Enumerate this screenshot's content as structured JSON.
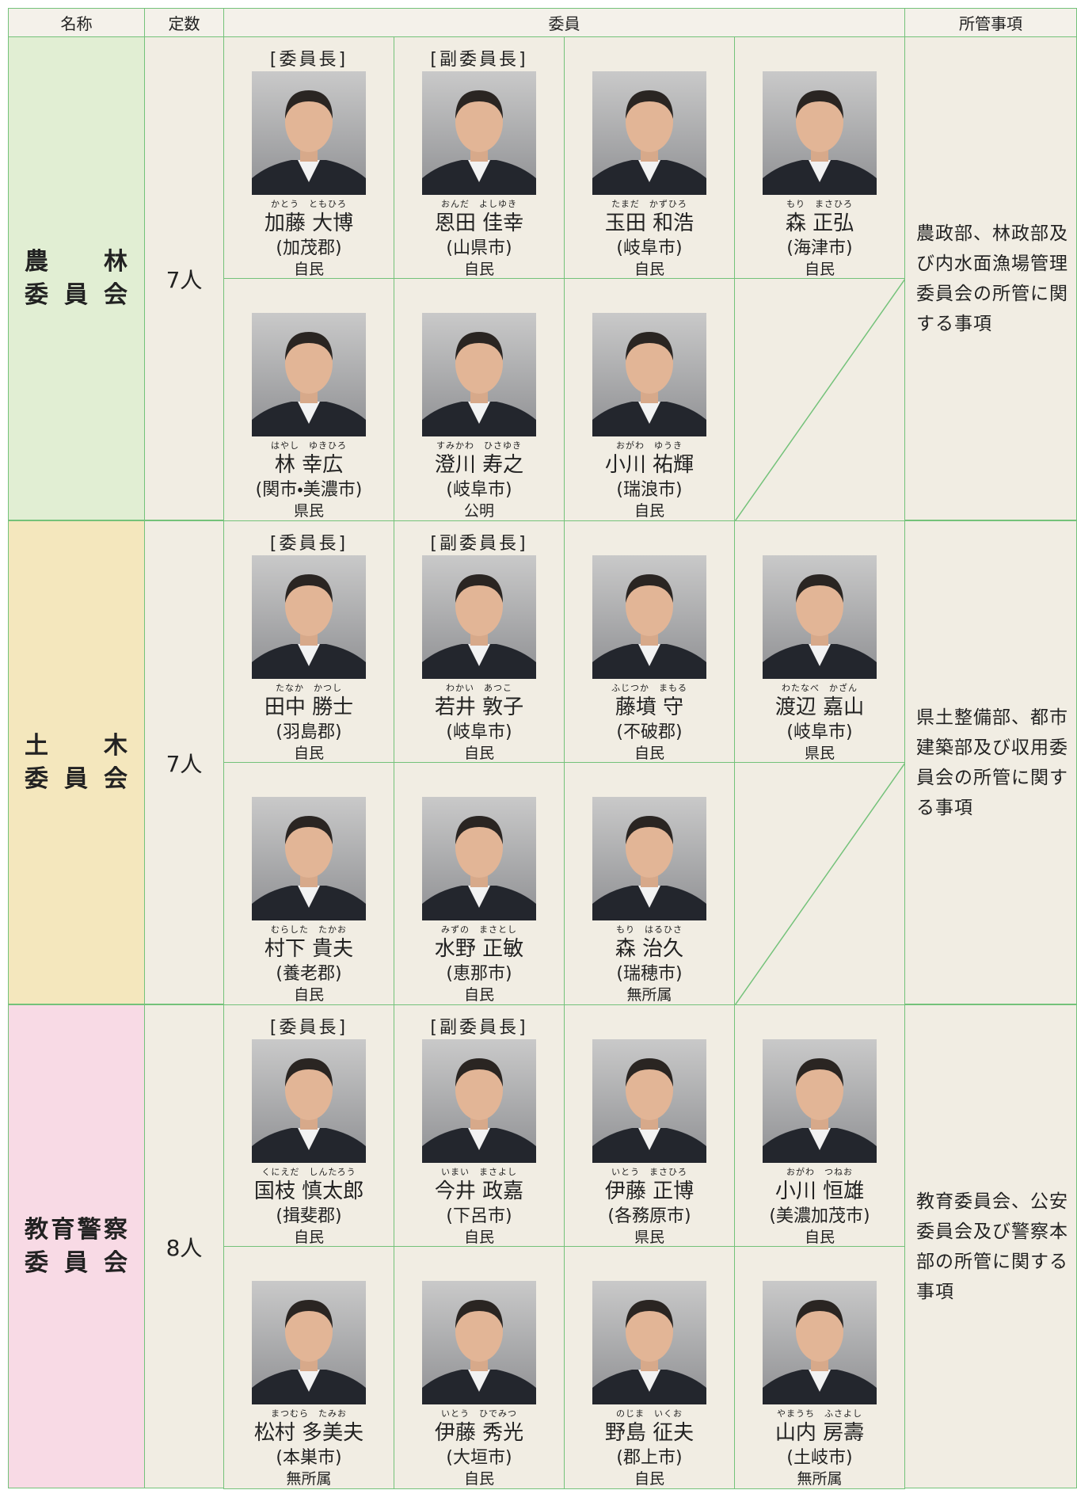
{
  "header": {
    "name": "名称",
    "count": "定数",
    "members": "委員",
    "jurisdiction": "所管事項"
  },
  "committees": [
    {
      "name_lines": [
        "農林",
        "委員会"
      ],
      "count": "7人",
      "color": "#e1eed3",
      "jurisdiction": "農政部、林政部及び内水面漁場管理委員会の所管に関する事項",
      "members": [
        {
          "role": "[委員長]",
          "furigana": "かとう　ともひろ",
          "name": "加藤 大博",
          "district": "(加茂郡)",
          "party": "自民"
        },
        {
          "role": "[副委員長]",
          "furigana": "おんだ　よしゆき",
          "name": "恩田 佳幸",
          "district": "(山県市)",
          "party": "自民"
        },
        {
          "furigana": "たまだ　かずひろ",
          "name": "玉田 和浩",
          "district": "(岐阜市)",
          "party": "自民"
        },
        {
          "furigana": "もり　まさひろ",
          "name": "森 正弘",
          "district": "(海津市)",
          "party": "自民"
        },
        {
          "furigana": "はやし　ゆきひろ",
          "name": "林 幸広",
          "district": "(関市・美濃市)",
          "party": "県民"
        },
        {
          "furigana": "すみかわ　ひさゆき",
          "name": "澄川 寿之",
          "district": "(岐阜市)",
          "party": "公明"
        },
        {
          "furigana": "おがわ　ゆうき",
          "name": "小川 祐輝",
          "district": "(瑞浪市)",
          "party": "自民"
        }
      ]
    },
    {
      "name_lines": [
        "土木",
        "委員会"
      ],
      "count": "7人",
      "color": "#f4e7bd",
      "jurisdiction": "県土整備部、都市建築部及び収用委員会の所管に関する事項",
      "members": [
        {
          "role": "[委員長]",
          "furigana": "たなか　かつし",
          "name": "田中 勝士",
          "district": "(羽島郡)",
          "party": "自民"
        },
        {
          "role": "[副委員長]",
          "furigana": "わかい　あつこ",
          "name": "若井 敦子",
          "district": "(岐阜市)",
          "party": "自民"
        },
        {
          "furigana": "ふじつか　まもる",
          "name": "藤墳 守",
          "district": "(不破郡)",
          "party": "自民"
        },
        {
          "furigana": "わたなべ　かざん",
          "name": "渡辺 嘉山",
          "district": "(岐阜市)",
          "party": "県民"
        },
        {
          "furigana": "むらした　たかお",
          "name": "村下 貴夫",
          "district": "(養老郡)",
          "party": "自民"
        },
        {
          "furigana": "みずの　まさとし",
          "name": "水野 正敏",
          "district": "(恵那市)",
          "party": "自民"
        },
        {
          "furigana": "もり　はるひさ",
          "name": "森 治久",
          "district": "(瑞穂市)",
          "party": "無所属"
        }
      ]
    },
    {
      "name_lines": [
        "教育警察",
        "委員会"
      ],
      "count": "8人",
      "color": "#f8dae5",
      "jurisdiction": "教育委員会、公安委員会及び警察本部の所管に関する事項",
      "members": [
        {
          "role": "[委員長]",
          "furigana": "くにえだ　しんたろう",
          "name": "国枝 慎太郎",
          "district": "(揖斐郡)",
          "party": "自民"
        },
        {
          "role": "[副委員長]",
          "furigana": "いまい　まさよし",
          "name": "今井 政嘉",
          "district": "(下呂市)",
          "party": "自民"
        },
        {
          "furigana": "いとう　まさひろ",
          "name": "伊藤 正博",
          "district": "(各務原市)",
          "party": "県民"
        },
        {
          "furigana": "おがわ　つねお",
          "name": "小川 恒雄",
          "district": "(美濃加茂市)",
          "party": "自民"
        },
        {
          "furigana": "まつむら　たみお",
          "name": "松村 多美夫",
          "district": "(本巣市)",
          "party": "無所属"
        },
        {
          "furigana": "いとう　ひでみつ",
          "name": "伊藤 秀光",
          "district": "(大垣市)",
          "party": "自民"
        },
        {
          "furigana": "のじま　いくお",
          "name": "野島 征夫",
          "district": "(郡上市)",
          "party": "自民"
        },
        {
          "furigana": "やまうち　ふさよし",
          "name": "山内 房壽",
          "district": "(土岐市)",
          "party": "無所属"
        }
      ]
    }
  ]
}
